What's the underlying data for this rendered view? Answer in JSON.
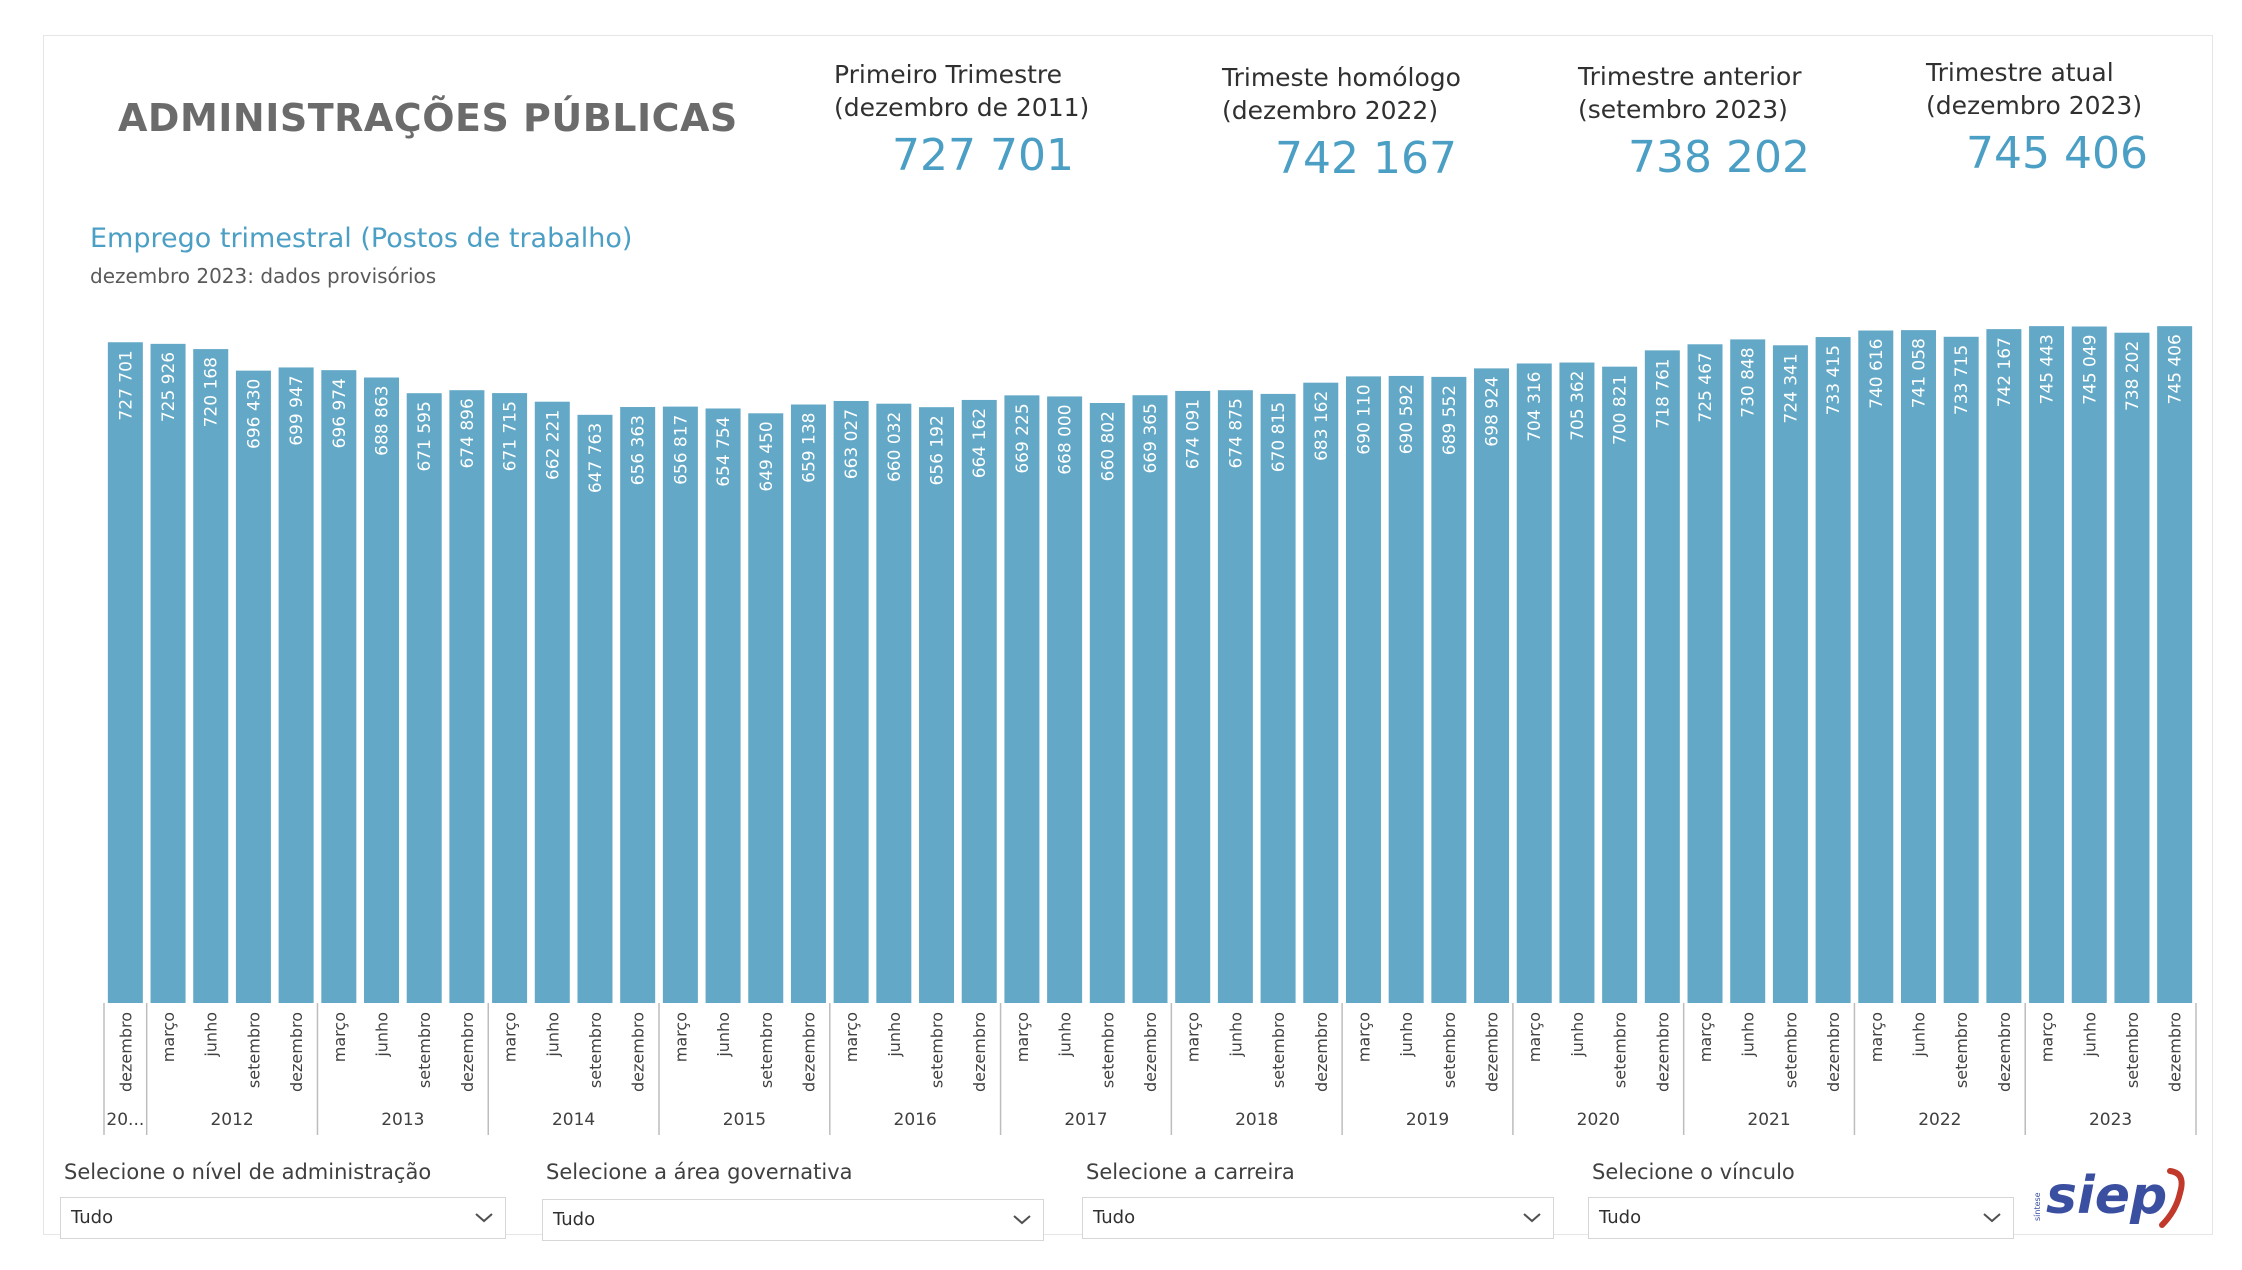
{
  "title": "ADMINISTRAÇÕES PÚBLICAS",
  "kpis": [
    {
      "line1": "Primeiro Trimestre",
      "line2": "(dezembro de 2011)",
      "value": "727 701"
    },
    {
      "line1": "Trimeste homólogo",
      "line2": "(dezembro 2022)",
      "value": "742 167"
    },
    {
      "line1": "Trimestre anterior",
      "line2": "(setembro 2023)",
      "value": "738 202"
    },
    {
      "line1": "Trimestre atual",
      "line2": "(dezembro 2023)",
      "value": "745 406"
    }
  ],
  "chart_title": "Emprego trimestral (Postos de trabalho)",
  "chart_subtitle": "dezembro 2023: dados provisórios",
  "colors": {
    "bar": "#63a9c7",
    "kpi": "#4b9fc4",
    "title": "#6b6b6b"
  },
  "chart_data": {
    "type": "bar",
    "x_quarters": [
      "dezembro",
      "março",
      "junho",
      "setembro",
      "dezembro",
      "março",
      "junho",
      "setembro",
      "dezembro",
      "março",
      "junho",
      "setembro",
      "dezembro",
      "março",
      "junho",
      "setembro",
      "dezembro",
      "março",
      "junho",
      "setembro",
      "dezembro",
      "março",
      "junho",
      "setembro",
      "dezembro",
      "março",
      "junho",
      "setembro",
      "dezembro",
      "março",
      "junho",
      "setembro",
      "dezembro",
      "março",
      "junho",
      "setembro",
      "dezembro",
      "março",
      "junho",
      "setembro",
      "dezembro",
      "março",
      "junho",
      "setembro",
      "dezembro",
      "março",
      "junho",
      "setembro",
      "dezembro"
    ],
    "values": [
      727701,
      725926,
      720168,
      696430,
      699947,
      696974,
      688863,
      671595,
      674896,
      671715,
      662221,
      647763,
      656363,
      656817,
      654754,
      649450,
      659138,
      663027,
      660032,
      656192,
      664162,
      669225,
      668000,
      660802,
      669365,
      674091,
      674875,
      670815,
      683162,
      690110,
      690592,
      689552,
      698924,
      704316,
      705362,
      700821,
      718761,
      725467,
      730848,
      724341,
      733415,
      740616,
      741058,
      733715,
      742167,
      745443,
      745049,
      738202,
      745406
    ],
    "labels": [
      "727 701",
      "725 926",
      "720 168",
      "696 430",
      "699 947",
      "696 974",
      "688 863",
      "671 595",
      "674 896",
      "671 715",
      "662 221",
      "647 763",
      "656 363",
      "656 817",
      "654 754",
      "649 450",
      "659 138",
      "663 027",
      "660 032",
      "656 192",
      "664 162",
      "669 225",
      "668 000",
      "660 802",
      "669 365",
      "674 091",
      "674 875",
      "670 815",
      "683 162",
      "690 110",
      "690 592",
      "689 552",
      "698 924",
      "704 316",
      "705 362",
      "700 821",
      "718 761",
      "725 467",
      "730 848",
      "724 341",
      "733 415",
      "740 616",
      "741 058",
      "733 715",
      "742 167",
      "745 443",
      "745 049",
      "738 202",
      "745 406"
    ],
    "year_groups": [
      {
        "label": "20...",
        "count": 1
      },
      {
        "label": "2012",
        "count": 4
      },
      {
        "label": "2013",
        "count": 4
      },
      {
        "label": "2014",
        "count": 4
      },
      {
        "label": "2015",
        "count": 4
      },
      {
        "label": "2016",
        "count": 4
      },
      {
        "label": "2017",
        "count": 4
      },
      {
        "label": "2018",
        "count": 4
      },
      {
        "label": "2019",
        "count": 4
      },
      {
        "label": "2020",
        "count": 4
      },
      {
        "label": "2021",
        "count": 4
      },
      {
        "label": "2022",
        "count": 4
      },
      {
        "label": "2023",
        "count": 4
      }
    ],
    "ylim": [
      0,
      750000
    ],
    "grid": false,
    "legend": "none"
  },
  "filters": [
    {
      "label": "Selecione o nível de administração",
      "value": "Tudo"
    },
    {
      "label": "Selecione a área governativa",
      "value": "Tudo"
    },
    {
      "label": "Selecione a carreira",
      "value": "Tudo"
    },
    {
      "label": "Selecione o vínculo",
      "value": "Tudo"
    }
  ],
  "logo": {
    "small_text": "síntese",
    "text": "siep"
  }
}
